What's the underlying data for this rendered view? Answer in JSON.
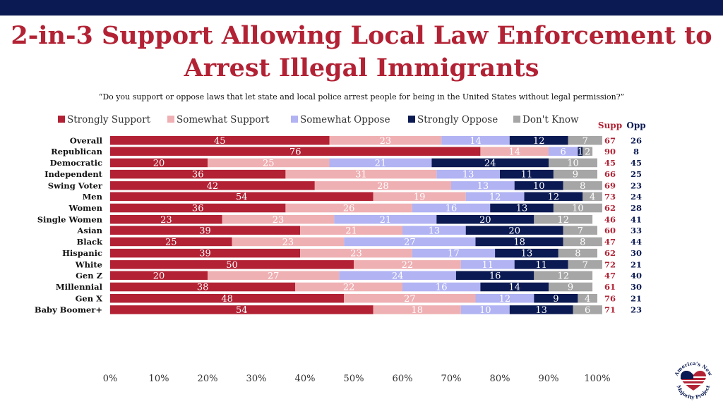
{
  "header": {
    "title_line1": "2-in-3 Support Allowing Local Law Enforcement to",
    "title_line2": "Arrest Illegal Immigrants",
    "subtitle": "“Do you support or oppose laws that let state and local police arrest people for being in the United States without legal permission?”"
  },
  "colors": {
    "strongly_support": "#b22234",
    "somewhat_support": "#efb0b3",
    "somewhat_oppose": "#b1b3f3",
    "strongly_oppose": "#0b1a52",
    "dont_know": "#a6a6a6"
  },
  "logo": {
    "text": "America's New Majority Project",
    "icon": "us-flag-heart-icon"
  },
  "chart_data": {
    "type": "bar",
    "orientation": "horizontal-stacked-100",
    "title": "2-in-3 Support Allowing Local Law Enforcement to Arrest Illegal Immigrants",
    "xlabel": "",
    "ylabel": "",
    "xlim": [
      0,
      100
    ],
    "x_ticks": [
      "0%",
      "10%",
      "20%",
      "30%",
      "40%",
      "50%",
      "60%",
      "70%",
      "80%",
      "90%",
      "100%"
    ],
    "legend_placement": "top",
    "column_headers": {
      "supp": "Supp",
      "opp": "Opp"
    },
    "series": [
      {
        "name": "Strongly Support",
        "key": "strongly_support",
        "values": [
          45,
          76,
          20,
          36,
          42,
          54,
          36,
          23,
          39,
          25,
          39,
          50,
          20,
          38,
          48,
          54
        ]
      },
      {
        "name": "Somewhat Support",
        "key": "somewhat_support",
        "values": [
          23,
          14,
          25,
          31,
          28,
          19,
          26,
          23,
          21,
          23,
          23,
          22,
          27,
          22,
          27,
          18
        ]
      },
      {
        "name": "Somewhat Oppose",
        "key": "somewhat_oppose",
        "values": [
          14,
          6,
          21,
          13,
          13,
          12,
          16,
          21,
          13,
          27,
          17,
          11,
          24,
          16,
          12,
          10
        ]
      },
      {
        "name": "Strongly Oppose",
        "key": "strongly_oppose",
        "values": [
          12,
          1,
          24,
          11,
          10,
          12,
          13,
          20,
          20,
          18,
          13,
          11,
          16,
          14,
          9,
          13
        ]
      },
      {
        "name": "Don't Know",
        "key": "dont_know",
        "values": [
          7,
          2,
          10,
          9,
          8,
          4,
          10,
          12,
          7,
          8,
          8,
          7,
          12,
          9,
          4,
          6
        ]
      }
    ],
    "categories": [
      "Overall",
      "Republican",
      "Democratic",
      "Independent",
      "Swing Voter",
      "Men",
      "Women",
      "Single Women",
      "Asian",
      "Black",
      "Hispanic",
      "White",
      "Gen Z",
      "Millennial",
      "Gen X",
      "Baby Boomer+"
    ],
    "groups": [
      [
        0
      ],
      [
        1,
        2,
        3,
        4
      ],
      [
        5,
        6,
        7
      ],
      [
        8,
        9,
        10,
        11
      ],
      [
        12,
        13,
        14,
        15
      ]
    ],
    "supp": [
      67,
      90,
      45,
      66,
      69,
      73,
      62,
      46,
      60,
      47,
      62,
      72,
      47,
      61,
      76,
      71
    ],
    "opp": [
      26,
      8,
      45,
      25,
      23,
      24,
      28,
      41,
      33,
      44,
      30,
      21,
      40,
      30,
      21,
      23
    ]
  }
}
